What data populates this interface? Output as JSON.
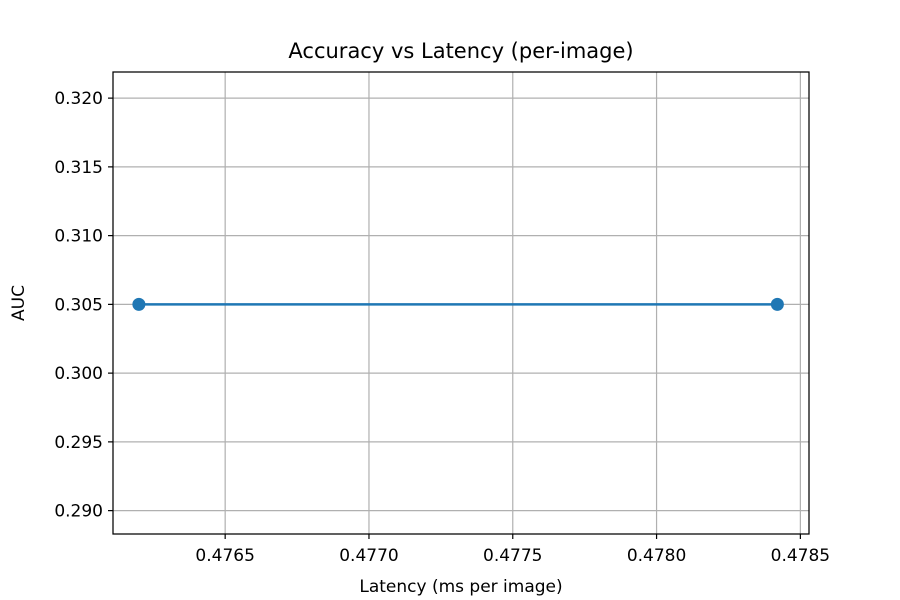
{
  "chart_data": {
    "type": "line",
    "title": "Accuracy vs Latency (per-image)",
    "xlabel": "Latency (ms per image)",
    "ylabel": "AUC",
    "xlim": [
      0.47611,
      0.47853
    ],
    "ylim": [
      0.2883,
      0.3219
    ],
    "x_ticks": [
      {
        "value": 0.4765,
        "label": "0.4765"
      },
      {
        "value": 0.477,
        "label": "0.4770"
      },
      {
        "value": 0.4775,
        "label": "0.4775"
      },
      {
        "value": 0.478,
        "label": "0.4780"
      },
      {
        "value": 0.4785,
        "label": "0.4785"
      }
    ],
    "y_ticks": [
      {
        "value": 0.29,
        "label": "0.290"
      },
      {
        "value": 0.295,
        "label": "0.295"
      },
      {
        "value": 0.3,
        "label": "0.300"
      },
      {
        "value": 0.305,
        "label": "0.305"
      },
      {
        "value": 0.31,
        "label": "0.310"
      },
      {
        "value": 0.315,
        "label": "0.315"
      },
      {
        "value": 0.32,
        "label": "0.320"
      }
    ],
    "grid": true,
    "series": [
      {
        "color": "#1f77b4",
        "marker": "circle",
        "points": [
          {
            "x": 0.4762,
            "y": 0.305
          },
          {
            "x": 0.47842,
            "y": 0.305
          }
        ]
      }
    ]
  }
}
